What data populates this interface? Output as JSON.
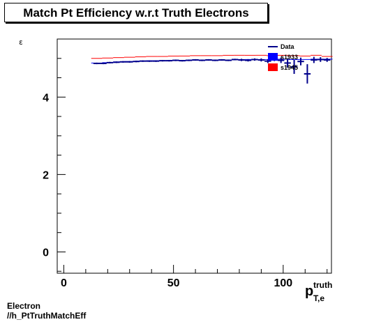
{
  "title": "Match Pt Efficiency w.r.t Truth Electrons",
  "footer": {
    "line1": "Electron",
    "line2": "//h_PtTruthMatchEff"
  },
  "colors": {
    "data": "#00008b",
    "s1933": "#0000ff",
    "s1945": "#ff0000"
  },
  "chart_data": {
    "type": "scatter",
    "title": "Match Pt Efficiency w.r.t Truth Electrons",
    "ylabel": "ε",
    "xlabel_main": "p",
    "xlabel_sup": "truth",
    "xlabel_sub": "T,e",
    "xlim": [
      -3,
      122
    ],
    "ylim": [
      -0.55,
      5.5
    ],
    "x_ticks": [
      0,
      50,
      100
    ],
    "y_ticks": [
      0,
      2,
      4
    ],
    "grid": false,
    "legend_position": "top-right",
    "legend": [
      {
        "label": "Data",
        "style": "line",
        "color": "#00008b"
      },
      {
        "label": "s1933",
        "style": "box",
        "color": "#0000ff"
      },
      {
        "label": "s1945",
        "style": "box",
        "color": "#ff0000"
      }
    ],
    "series": [
      {
        "name": "s1945",
        "color": "#ff0000",
        "x": [
          15,
          20,
          25,
          30,
          35,
          40,
          45,
          50,
          55,
          60,
          65,
          70,
          75,
          80,
          85,
          90,
          95,
          100,
          105,
          110,
          115,
          120
        ],
        "y": [
          5.0,
          5.01,
          5.02,
          5.03,
          5.04,
          5.05,
          5.05,
          5.06,
          5.06,
          5.07,
          5.07,
          5.07,
          5.08,
          5.08,
          5.08,
          5.08,
          5.07,
          5.08,
          5.07,
          5.06,
          5.08,
          5.05
        ]
      },
      {
        "name": "s1933",
        "color": "#0000ff",
        "x": [
          15,
          20,
          25,
          30,
          35,
          40,
          45,
          50,
          55,
          60,
          65,
          70,
          75,
          80,
          85,
          90,
          95,
          100,
          105,
          110,
          115,
          120
        ],
        "y": [
          4.88,
          4.89,
          4.91,
          4.92,
          4.93,
          4.94,
          4.94,
          4.95,
          4.95,
          4.96,
          4.96,
          4.96,
          4.96,
          4.97,
          4.97,
          4.97,
          4.97,
          4.98,
          4.97,
          4.97,
          4.98,
          4.98
        ]
      },
      {
        "name": "Data",
        "color": "#00008b",
        "x": [
          15,
          18,
          21,
          24,
          27,
          30,
          33,
          36,
          39,
          42,
          45,
          48,
          51,
          54,
          57,
          60,
          63,
          66,
          69,
          72,
          75,
          78,
          81,
          84,
          87,
          90,
          93,
          96,
          99,
          102,
          105,
          108,
          111,
          114,
          117,
          120
        ],
        "y": [
          4.87,
          4.87,
          4.89,
          4.9,
          4.91,
          4.91,
          4.92,
          4.93,
          4.93,
          4.93,
          4.94,
          4.94,
          4.95,
          4.94,
          4.95,
          4.96,
          4.95,
          4.96,
          4.95,
          4.96,
          4.95,
          4.97,
          4.96,
          4.95,
          4.97,
          4.96,
          4.93,
          4.99,
          4.95,
          4.88,
          4.78,
          4.92,
          4.6,
          4.96,
          4.97,
          4.96
        ],
        "yerr": [
          0.02,
          0.02,
          0.02,
          0.02,
          0.02,
          0.02,
          0.02,
          0.02,
          0.02,
          0.02,
          0.02,
          0.02,
          0.02,
          0.02,
          0.02,
          0.02,
          0.02,
          0.02,
          0.02,
          0.02,
          0.02,
          0.02,
          0.03,
          0.03,
          0.03,
          0.04,
          0.05,
          0.06,
          0.07,
          0.12,
          0.18,
          0.1,
          0.25,
          0.08,
          0.06,
          0.05
        ]
      }
    ]
  }
}
